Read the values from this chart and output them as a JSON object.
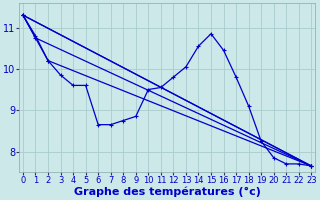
{
  "background_color": "#cce8e8",
  "grid_color": "#aacccc",
  "line_color": "#0000cc",
  "xlabel": "Graphe des températures (°c)",
  "xlabel_fontsize": 8,
  "tick_fontsize": 6,
  "ylim": [
    7.5,
    11.6
  ],
  "xlim": [
    -0.3,
    23.3
  ],
  "yticks": [
    8,
    9,
    10,
    11
  ],
  "xticks": [
    0,
    1,
    2,
    3,
    4,
    5,
    6,
    7,
    8,
    9,
    10,
    11,
    12,
    13,
    14,
    15,
    16,
    17,
    18,
    19,
    20,
    21,
    22,
    23
  ],
  "series_main": [
    11.3,
    10.8,
    10.2,
    9.85,
    9.6,
    9.6,
    8.65,
    8.65,
    8.75,
    8.85,
    9.5,
    9.55,
    9.8,
    10.05,
    10.55,
    10.85,
    10.45,
    9.8,
    9.1,
    8.25,
    7.85,
    7.7,
    7.7,
    7.65
  ],
  "trend1_x": [
    0,
    1,
    23
  ],
  "trend1_y": [
    11.3,
    10.75,
    7.65
  ],
  "trend2_x": [
    0,
    2,
    23
  ],
  "trend2_y": [
    11.3,
    10.2,
    7.65
  ],
  "trend3_x": [
    0,
    23
  ],
  "trend3_y": [
    11.3,
    7.65
  ],
  "trend4_x": [
    0,
    23
  ],
  "trend4_y": [
    11.3,
    7.65
  ]
}
